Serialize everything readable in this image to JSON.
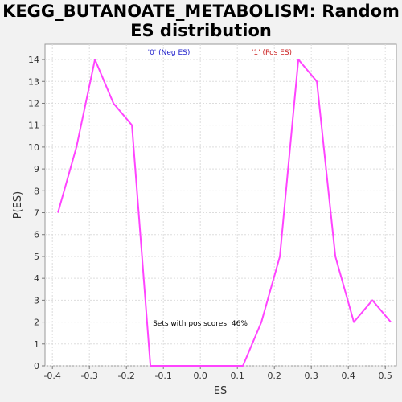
{
  "chart_data": {
    "type": "line",
    "title_line1": "KEGG_BUTANOATE_METABOLISM: Random",
    "title_line2": "ES distribution",
    "xlabel": "ES",
    "ylabel": "P(ES)",
    "xlim": [
      -0.42,
      0.53
    ],
    "ylim": [
      0,
      14.7
    ],
    "x_ticks": [
      -0.4,
      -0.3,
      -0.2,
      -0.1,
      0.0,
      0.1,
      0.2,
      0.3,
      0.4,
      0.5
    ],
    "x_tick_labels": [
      "-0.4",
      "-0.3",
      "-0.2",
      "-0.1",
      "0.0",
      "0.1",
      "0.2",
      "0.3",
      "0.4",
      "0.5"
    ],
    "y_ticks": [
      0,
      1,
      2,
      3,
      4,
      5,
      6,
      7,
      8,
      9,
      10,
      11,
      12,
      13,
      14
    ],
    "y_tick_labels": [
      "0",
      "1",
      "2",
      "3",
      "4",
      "5",
      "6",
      "7",
      "8",
      "9",
      "10",
      "11",
      "12",
      "13",
      "14"
    ],
    "grid": true,
    "series": [
      {
        "color": "#ff44ff",
        "x": [
          -0.385,
          -0.335,
          -0.285,
          -0.235,
          -0.185,
          -0.135,
          -0.085,
          -0.035,
          0.015,
          0.065,
          0.115,
          0.165,
          0.215,
          0.265,
          0.315,
          0.365,
          0.415,
          0.465,
          0.515
        ],
        "y": [
          7,
          10,
          14,
          12,
          11,
          0,
          0,
          0,
          0,
          0,
          0,
          2,
          5,
          14,
          13,
          5,
          2,
          3,
          2
        ]
      }
    ],
    "annotations": {
      "neg_label": "'0' (Neg ES)",
      "neg_color": "#2222cc",
      "pos_label": "'1' (Pos ES)",
      "pos_color": "#cc2222",
      "pos_scores_text": "Sets with pos scores: 46%"
    }
  }
}
